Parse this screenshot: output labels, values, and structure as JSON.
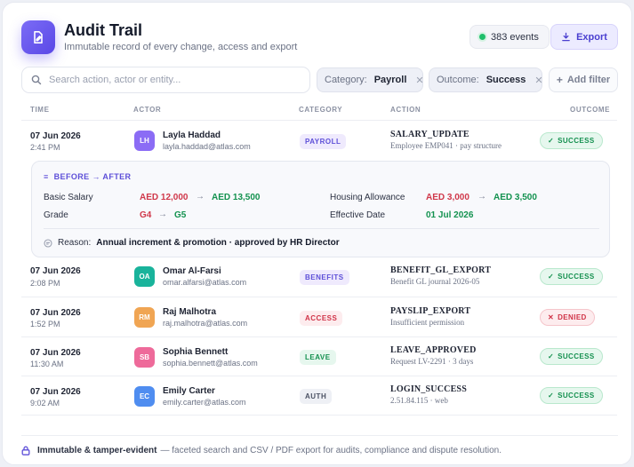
{
  "header": {
    "title": "Audit Trail",
    "subtitle": "Immutable record of every change, access and export",
    "events_count": "383 events",
    "export_label": "Export"
  },
  "filters": {
    "search_placeholder": "Search action, actor or entity...",
    "chips": [
      {
        "key": "Category:",
        "value": "Payroll"
      },
      {
        "key": "Outcome:",
        "value": "Success"
      }
    ],
    "add_filter_label": "Add filter"
  },
  "table": {
    "columns": [
      "TIME",
      "ACTOR",
      "CATEGORY",
      "ACTION",
      "OUTCOME"
    ],
    "rows": [
      {
        "date": "07 Jun 2026",
        "time": "2:41 PM",
        "initials": "LH",
        "name": "Layla Haddad",
        "email": "layla.haddad@atlas.com",
        "category": "PAYROLL",
        "action": "SALARY_UPDATE",
        "action_sub": "Employee EMP041 · pay structure",
        "outcome": "SUCCESS"
      },
      {
        "date": "07 Jun 2026",
        "time": "2:08 PM",
        "initials": "OA",
        "name": "Omar Al-Farsi",
        "email": "omar.alfarsi@atlas.com",
        "category": "BENEFITS",
        "action": "BENEFIT_GL_EXPORT",
        "action_sub": "Benefit GL journal 2026-05",
        "outcome": "SUCCESS"
      },
      {
        "date": "07 Jun 2026",
        "time": "1:52 PM",
        "initials": "RM",
        "name": "Raj Malhotra",
        "email": "raj.malhotra@atlas.com",
        "category": "ACCESS",
        "action": "PAYSLIP_EXPORT",
        "action_sub": "Insufficient permission",
        "outcome": "DENIED"
      },
      {
        "date": "07 Jun 2026",
        "time": "11:30 AM",
        "initials": "SB",
        "name": "Sophia Bennett",
        "email": "sophia.bennett@atlas.com",
        "category": "LEAVE",
        "action": "LEAVE_APPROVED",
        "action_sub": "Request LV-2291 · 3 days",
        "outcome": "SUCCESS"
      },
      {
        "date": "07 Jun 2026",
        "time": "9:02 AM",
        "initials": "EC",
        "name": "Emily Carter",
        "email": "emily.carter@atlas.com",
        "category": "AUTH",
        "action": "LOGIN_SUCCESS",
        "action_sub": "2.51.84.115 · web",
        "outcome": "SUCCESS"
      }
    ]
  },
  "detail": {
    "title": "BEFORE → AFTER",
    "fields": [
      {
        "label": "Basic Salary",
        "before": "AED 12,000",
        "after": "AED 13,500"
      },
      {
        "label": "Housing Allowance",
        "before": "AED 3,000",
        "after": "AED 3,500"
      },
      {
        "label": "Grade",
        "before": "G4",
        "after": "G5"
      },
      {
        "label": "Effective Date",
        "before": "",
        "after": "01 Jul 2026"
      }
    ],
    "reason_label": "Reason:",
    "reason_text": "Annual increment & promotion · approved by HR Director"
  },
  "footer": {
    "bold": "Immutable & tamper-evident",
    "text": "— faceted search and CSV / PDF export for audits, compliance and dispute resolution."
  },
  "colors": {
    "accent": "#5a48e6",
    "success": "#14904f",
    "danger": "#d03347"
  }
}
